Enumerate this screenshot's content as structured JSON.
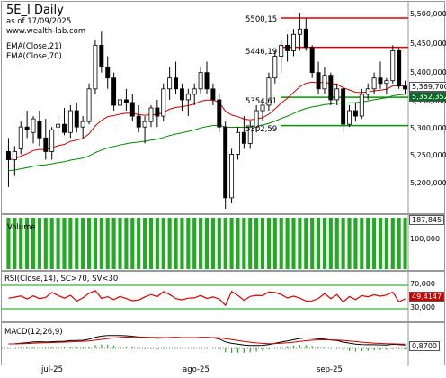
{
  "price_panel": {
    "title": "5E_I Daily",
    "asof": "as of 17/09/2025",
    "site": "www.wealth-lab.com",
    "ema21_label": "EMA(Close,21)",
    "ema70_label": "EMA(Close,70)",
    "y_ticks": [
      "5,500,000",
      "5,450,000",
      "5,400,000",
      "5,350,000",
      "5,300,000",
      "5,250,000",
      "5,200,000"
    ],
    "level_labels": [
      "5500,15",
      "5446,19",
      "5354,61",
      "5302,59"
    ],
    "last_close_tag": "5,369,700",
    "ema_tag": "5,352,352"
  },
  "volume_panel": {
    "label": "Volume",
    "y_ticks": [
      "100,000"
    ],
    "last_tag": "187,845"
  },
  "rsi_panel": {
    "label": "RSI(Close,14), SC>70, SV<30",
    "y_ticks": [
      "70,000",
      "30,000"
    ],
    "last_tag": "49,4147"
  },
  "macd_panel": {
    "label": "MACD(12,26,9)",
    "last_tag": "0,8700"
  },
  "x_axis": {
    "labels": [
      "jul-25",
      "ago-25",
      "sep-25"
    ]
  },
  "colors": {
    "ema21": "#cc0000",
    "ema70": "#008800",
    "volume": "#22aa22",
    "level_red": "#dd0000",
    "level_green": "#009900"
  },
  "chart_data": {
    "type": "candlestick",
    "title": "5E_I Daily",
    "ylim": [
      5150,
      5520
    ],
    "candles": [
      {
        "o": 5255,
        "h": 5280,
        "l": 5190,
        "c": 5240
      },
      {
        "o": 5240,
        "h": 5265,
        "l": 5210,
        "c": 5255
      },
      {
        "o": 5260,
        "h": 5310,
        "l": 5250,
        "c": 5300
      },
      {
        "o": 5300,
        "h": 5330,
        "l": 5280,
        "c": 5295
      },
      {
        "o": 5290,
        "h": 5320,
        "l": 5270,
        "c": 5315
      },
      {
        "o": 5310,
        "h": 5330,
        "l": 5265,
        "c": 5280
      },
      {
        "o": 5280,
        "h": 5315,
        "l": 5240,
        "c": 5255
      },
      {
        "o": 5255,
        "h": 5300,
        "l": 5240,
        "c": 5295
      },
      {
        "o": 5300,
        "h": 5320,
        "l": 5285,
        "c": 5305
      },
      {
        "o": 5305,
        "h": 5335,
        "l": 5285,
        "c": 5290
      },
      {
        "o": 5290,
        "h": 5340,
        "l": 5280,
        "c": 5330
      },
      {
        "o": 5330,
        "h": 5345,
        "l": 5290,
        "c": 5300
      },
      {
        "o": 5300,
        "h": 5320,
        "l": 5280,
        "c": 5310
      },
      {
        "o": 5310,
        "h": 5380,
        "l": 5305,
        "c": 5370
      },
      {
        "o": 5370,
        "h": 5460,
        "l": 5360,
        "c": 5450
      },
      {
        "o": 5450,
        "h": 5475,
        "l": 5400,
        "c": 5410
      },
      {
        "o": 5410,
        "h": 5430,
        "l": 5370,
        "c": 5390
      },
      {
        "o": 5390,
        "h": 5400,
        "l": 5330,
        "c": 5340
      },
      {
        "o": 5340,
        "h": 5360,
        "l": 5300,
        "c": 5350
      },
      {
        "o": 5350,
        "h": 5370,
        "l": 5330,
        "c": 5345
      },
      {
        "o": 5345,
        "h": 5360,
        "l": 5310,
        "c": 5320
      },
      {
        "o": 5320,
        "h": 5340,
        "l": 5290,
        "c": 5300
      },
      {
        "o": 5300,
        "h": 5320,
        "l": 5270,
        "c": 5310
      },
      {
        "o": 5310,
        "h": 5340,
        "l": 5300,
        "c": 5335
      },
      {
        "o": 5335,
        "h": 5350,
        "l": 5300,
        "c": 5320
      },
      {
        "o": 5320,
        "h": 5380,
        "l": 5310,
        "c": 5370
      },
      {
        "o": 5370,
        "h": 5410,
        "l": 5350,
        "c": 5390
      },
      {
        "o": 5390,
        "h": 5420,
        "l": 5360,
        "c": 5370
      },
      {
        "o": 5370,
        "h": 5380,
        "l": 5330,
        "c": 5350
      },
      {
        "o": 5350,
        "h": 5370,
        "l": 5320,
        "c": 5360
      },
      {
        "o": 5360,
        "h": 5380,
        "l": 5340,
        "c": 5370
      },
      {
        "o": 5370,
        "h": 5410,
        "l": 5360,
        "c": 5400
      },
      {
        "o": 5400,
        "h": 5420,
        "l": 5360,
        "c": 5370
      },
      {
        "o": 5370,
        "h": 5380,
        "l": 5340,
        "c": 5350
      },
      {
        "o": 5350,
        "h": 5360,
        "l": 5290,
        "c": 5300
      },
      {
        "o": 5300,
        "h": 5310,
        "l": 5150,
        "c": 5170
      },
      {
        "o": 5170,
        "h": 5260,
        "l": 5160,
        "c": 5250
      },
      {
        "o": 5250,
        "h": 5300,
        "l": 5240,
        "c": 5290
      },
      {
        "o": 5290,
        "h": 5320,
        "l": 5260,
        "c": 5270
      },
      {
        "o": 5270,
        "h": 5310,
        "l": 5260,
        "c": 5300
      },
      {
        "o": 5300,
        "h": 5340,
        "l": 5290,
        "c": 5330
      },
      {
        "o": 5330,
        "h": 5350,
        "l": 5310,
        "c": 5340
      },
      {
        "o": 5340,
        "h": 5400,
        "l": 5330,
        "c": 5390
      },
      {
        "o": 5390,
        "h": 5440,
        "l": 5380,
        "c": 5430
      },
      {
        "o": 5430,
        "h": 5460,
        "l": 5400,
        "c": 5450
      },
      {
        "o": 5450,
        "h": 5470,
        "l": 5420,
        "c": 5440
      },
      {
        "o": 5440,
        "h": 5480,
        "l": 5430,
        "c": 5470
      },
      {
        "o": 5470,
        "h": 5510,
        "l": 5440,
        "c": 5480
      },
      {
        "o": 5480,
        "h": 5500,
        "l": 5440,
        "c": 5446
      },
      {
        "o": 5446,
        "h": 5450,
        "l": 5390,
        "c": 5400
      },
      {
        "o": 5400,
        "h": 5420,
        "l": 5360,
        "c": 5370
      },
      {
        "o": 5370,
        "h": 5410,
        "l": 5360,
        "c": 5395
      },
      {
        "o": 5395,
        "h": 5400,
        "l": 5340,
        "c": 5350
      },
      {
        "o": 5350,
        "h": 5380,
        "l": 5340,
        "c": 5370
      },
      {
        "o": 5370,
        "h": 5375,
        "l": 5290,
        "c": 5305
      },
      {
        "o": 5305,
        "h": 5340,
        "l": 5300,
        "c": 5330
      },
      {
        "o": 5330,
        "h": 5345,
        "l": 5310,
        "c": 5320
      },
      {
        "o": 5320,
        "h": 5370,
        "l": 5315,
        "c": 5360
      },
      {
        "o": 5360,
        "h": 5380,
        "l": 5350,
        "c": 5370
      },
      {
        "o": 5370,
        "h": 5400,
        "l": 5360,
        "c": 5390
      },
      {
        "o": 5390,
        "h": 5420,
        "l": 5370,
        "c": 5380
      },
      {
        "o": 5380,
        "h": 5390,
        "l": 5360,
        "c": 5385
      },
      {
        "o": 5385,
        "h": 5450,
        "l": 5380,
        "c": 5440
      },
      {
        "o": 5440,
        "h": 5445,
        "l": 5370,
        "c": 5375
      },
      {
        "o": 5375,
        "h": 5385,
        "l": 5360,
        "c": 5369.7
      }
    ],
    "levels": [
      {
        "value": 5500.15,
        "color": "red"
      },
      {
        "value": 5446.19,
        "color": "red"
      },
      {
        "value": 5354.61,
        "color": "green"
      },
      {
        "value": 5302.59,
        "color": "green"
      }
    ]
  }
}
